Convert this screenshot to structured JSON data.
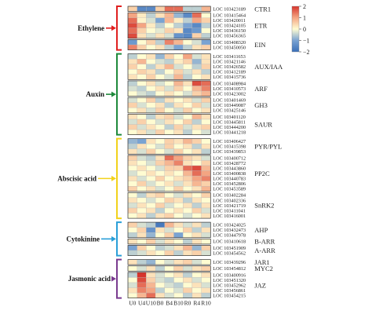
{
  "chart_data": {
    "type": "heatmap",
    "columns": [
      "U0",
      "U4",
      "U10",
      "B0",
      "B4",
      "B10",
      "R0",
      "R4",
      "R10"
    ],
    "colorbar": {
      "max": 2,
      "min": -2,
      "ticks": [
        2,
        1,
        0,
        -1,
        -2
      ],
      "tick_labels": [
        "2",
        "1",
        "0",
        "−1",
        "−2"
      ],
      "colors": [
        "#3a6fb8",
        "#7aa3d2",
        "#fffcd2",
        "#f4a582",
        "#d6342c"
      ]
    },
    "categories": [
      {
        "name": "Ethylene",
        "color": "#e02020",
        "groups": [
          {
            "gene": "CTR1",
            "rows": [
              {
                "id": "LOC 103423189",
                "values": [
                  0.5,
                  -1.5,
                  -1.5,
                  0.5,
                  1.5,
                  1.5,
                  -0.5,
                  -0.5,
                  0.8
                ]
              }
            ]
          },
          {
            "gene": "ETR",
            "rows": [
              {
                "id": "LOC 103415464",
                "values": [
                  1.0,
                  0.2,
                  -0.5,
                  0.3,
                  0.8,
                  -0.8,
                  -1.5,
                  1.5,
                  0.0
                ]
              },
              {
                "id": "LOC 103420011",
                "values": [
                  1.5,
                  0.1,
                  -0.3,
                  -1.0,
                  0.8,
                  0.2,
                  -0.5,
                  1.0,
                  0.5
                ]
              },
              {
                "id": "LOC 103424105",
                "values": [
                  1.8,
                  1.0,
                  0.2,
                  -0.5,
                  0.0,
                  -0.5,
                  -1.0,
                  -1.5,
                  -0.5
                ]
              },
              {
                "id": "LOC 103436150",
                "values": [
                  1.5,
                  0.5,
                  0.0,
                  -0.2,
                  0.5,
                  0.3,
                  -1.5,
                  -1.2,
                  0.0
                ]
              },
              {
                "id": "LOC 103456365",
                "values": [
                  1.8,
                  0.3,
                  -0.3,
                  0.3,
                  -0.3,
                  -1.3,
                  -1.5,
                  0.5,
                  -0.5
                ]
              }
            ]
          },
          {
            "gene": "EIN",
            "rows": [
              {
                "id": "LOC 103408320",
                "values": [
                  -1.2,
                  0.0,
                  0.5,
                  -0.5,
                  1.3,
                  0.8,
                  0.0,
                  -0.3,
                  -1.0
                ]
              },
              {
                "id": "LOC 103450050",
                "values": [
                  1.3,
                  0.5,
                  0.0,
                  0.3,
                  -0.5,
                  -1.0,
                  -0.5,
                  0.3,
                  0.5
                ]
              }
            ]
          }
        ]
      },
      {
        "name": "Auxin",
        "color": "#1f8a3c",
        "groups": [
          {
            "gene": "AUX/IAA",
            "rows": [
              {
                "id": "LOC 103411653",
                "values": [
                  -0.5,
                  0.0,
                  0.3,
                  -0.8,
                  0.5,
                  0.0,
                  1.0,
                  -0.3,
                  0.3
                ]
              },
              {
                "id": "LOC 103421146",
                "values": [
                  0.3,
                  0.8,
                  0.0,
                  -0.3,
                  -0.5,
                  0.2,
                  0.5,
                  -0.8,
                  0.3
                ]
              },
              {
                "id": "LOC 103426582",
                "values": [
                  0.5,
                  0.0,
                  -0.5,
                  0.3,
                  0.8,
                  -0.3,
                  0.0,
                  -0.5,
                  0.5
                ]
              },
              {
                "id": "LOC 103412189",
                "values": [
                  0.0,
                  0.5,
                  0.3,
                  -0.5,
                  0.0,
                  0.5,
                  -0.3,
                  0.3,
                  -0.5
                ]
              },
              {
                "id": "LOC 103415736",
                "values": [
                  0.3,
                  0.0,
                  0.5,
                  0.0,
                  -0.3,
                  0.8,
                  -0.5,
                  0.0,
                  0.3
                ]
              }
            ]
          },
          {
            "gene": "ARF",
            "rows": [
              {
                "id": "LOC 103408984",
                "values": [
                  -0.5,
                  0.0,
                  0.3,
                  -0.3,
                  0.0,
                  0.8,
                  0.3,
                  1.8,
                  1.5
                ]
              },
              {
                "id": "LOC 103410573",
                "values": [
                  -0.3,
                  -0.5,
                  0.0,
                  0.3,
                  -0.3,
                  0.5,
                  0.0,
                  0.8,
                  1.3
                ]
              },
              {
                "id": "LOC 103423002",
                "values": [
                  0.0,
                  -0.3,
                  -0.5,
                  0.0,
                  0.3,
                  0.0,
                  -0.3,
                  0.5,
                  0.8
                ]
              }
            ]
          },
          {
            "gene": "GH3",
            "rows": [
              {
                "id": "LOC 103401469",
                "values": [
                  -0.3,
                  0.0,
                  0.5,
                  -0.5,
                  0.3,
                  0.0,
                  0.3,
                  -0.3,
                  0.5
                ]
              },
              {
                "id": "LOC 103449087",
                "values": [
                  0.5,
                  -0.3,
                  0.0,
                  0.3,
                  -0.5,
                  0.3,
                  0.0,
                  0.5,
                  -0.3
                ]
              },
              {
                "id": "LOC 103425146",
                "values": [
                  0.0,
                  0.3,
                  -0.3,
                  0.5,
                  0.0,
                  -0.3,
                  0.5,
                  0.0,
                  0.3
                ]
              }
            ]
          },
          {
            "gene": "SAUR",
            "rows": [
              {
                "id": "LOC 103401120",
                "values": [
                  0.3,
                  0.0,
                  -0.5,
                  0.3,
                  0.5,
                  -0.3,
                  0.0,
                  0.8,
                  0.3
                ]
              },
              {
                "id": "LOC 103445811",
                "values": [
                  -0.3,
                  0.5,
                  0.0,
                  -0.3,
                  0.3,
                  0.0,
                  0.5,
                  -0.5,
                  0.0
                ]
              },
              {
                "id": "LOC 103444200",
                "values": [
                  0.5,
                  -0.3,
                  0.3,
                  0.0,
                  -0.5,
                  0.5,
                  -0.3,
                  0.3,
                  0.5
                ]
              },
              {
                "id": "LOC 103441218",
                "values": [
                  0.0,
                  0.3,
                  -0.3,
                  0.5,
                  0.0,
                  0.3,
                  -0.5,
                  0.0,
                  -0.3
                ]
              }
            ]
          }
        ]
      },
      {
        "name": "Abscisic acid",
        "color": "#f2d21c",
        "groups": [
          {
            "gene": "PYR/PYL",
            "rows": [
              {
                "id": "LOC 103406427",
                "values": [
                  -0.8,
                  -1.0,
                  0.3,
                  0.0,
                  0.5,
                  0.3,
                  0.8,
                  0.5,
                  0.0
                ]
              },
              {
                "id": "LOC 103415398",
                "values": [
                  -0.5,
                  0.3,
                  0.0,
                  -0.3,
                  0.5,
                  0.0,
                  0.3,
                  -0.5,
                  0.3
                ]
              },
              {
                "id": "LOC 103439853",
                "values": [
                  0.3,
                  -0.3,
                  0.5,
                  0.0,
                  -0.3,
                  0.5,
                  0.0,
                  0.3,
                  -0.5
                ]
              }
            ]
          },
          {
            "gene": "PP2C",
            "rows": [
              {
                "id": "LOC 103400712",
                "values": [
                  0.5,
                  -0.3,
                  -0.5,
                  0.3,
                  1.5,
                  1.0,
                  0.5,
                  0.3,
                  -0.3
                ]
              },
              {
                "id": "LOC 103428772",
                "values": [
                  0.3,
                  0.0,
                  -0.3,
                  0.5,
                  0.8,
                  1.3,
                  0.3,
                  0.0,
                  0.5
                ]
              },
              {
                "id": "LOC 103443860",
                "values": [
                  0.0,
                  0.3,
                  0.0,
                  -0.3,
                  0.5,
                  0.5,
                  1.5,
                  1.8,
                  0.8
                ]
              },
              {
                "id": "LOC 103400838",
                "values": [
                  -0.3,
                  0.0,
                  0.3,
                  0.0,
                  0.3,
                  0.0,
                  0.8,
                  1.5,
                  1.0
                ]
              },
              {
                "id": "LOC 103440783",
                "values": [
                  0.3,
                  -0.3,
                  0.0,
                  0.5,
                  0.0,
                  0.3,
                  0.5,
                  1.0,
                  1.3
                ]
              },
              {
                "id": "LOC 103452806",
                "values": [
                  0.0,
                  0.5,
                  -0.3,
                  0.0,
                  0.3,
                  -0.3,
                  0.3,
                  0.8,
                  0.5
                ]
              },
              {
                "id": "LOC 103453589",
                "values": [
                  0.5,
                  0.0,
                  0.3,
                  -0.3,
                  0.0,
                  0.5,
                  0.0,
                  0.3,
                  0.8
                ]
              }
            ]
          },
          {
            "gene": "SnRK2",
            "rows": [
              {
                "id": "LOC 103402284",
                "values": [
                  0.0,
                  -0.5,
                  0.3,
                  0.5,
                  0.0,
                  -0.3,
                  0.3,
                  0.0,
                  0.5
                ]
              },
              {
                "id": "LOC 103402336",
                "values": [
                  0.3,
                  0.0,
                  -0.3,
                  0.0,
                  0.5,
                  0.3,
                  -0.5,
                  0.3,
                  0.0
                ]
              },
              {
                "id": "LOC 103421719",
                "values": [
                  -0.3,
                  0.3,
                  0.0,
                  0.5,
                  -0.3,
                  0.0,
                  0.3,
                  -0.5,
                  0.3
                ]
              },
              {
                "id": "LOC 103411041",
                "values": [
                  0.5,
                  0.0,
                  0.3,
                  -0.5,
                  0.0,
                  0.3,
                  0.0,
                  0.5,
                  -0.3
                ]
              },
              {
                "id": "LOC 103416001",
                "values": [
                  0.0,
                  0.3,
                  -0.5,
                  0.3,
                  0.5,
                  0.0,
                  -0.3,
                  0.0,
                  0.3
                ]
              }
            ]
          }
        ]
      },
      {
        "name": "Cytokinine",
        "color": "#2a9fd8",
        "groups": [
          {
            "gene": "AHP",
            "rows": [
              {
                "id": "LOC 103424025",
                "values": [
                  0.5,
                  -0.3,
                  -0.5,
                  -1.8,
                  0.8,
                  0.3,
                  -0.3,
                  0.3,
                  -0.5
                ]
              },
              {
                "id": "LOC 103432473",
                "values": [
                  0.0,
                  0.5,
                  -1.3,
                  0.3,
                  -0.3,
                  0.0,
                  0.5,
                  -0.5,
                  0.3
                ]
              },
              {
                "id": "LOC 103447978",
                "values": [
                  -0.5,
                  0.3,
                  -0.8,
                  0.0,
                  0.5,
                  -1.0,
                  0.0,
                  0.3,
                  -0.3
                ]
              }
            ]
          },
          {
            "gene": "B-ARR",
            "rows": [
              {
                "id": "LOC 103410618",
                "values": [
                  0.3,
                  0.0,
                  0.5,
                  -0.3,
                  0.3,
                  0.0,
                  -0.5,
                  0.3,
                  0.0
                ]
              }
            ]
          },
          {
            "gene": "A-ARR",
            "rows": [
              {
                "id": "LOC 103451909",
                "values": [
                  -1.0,
                  0.5,
                  0.0,
                  -0.5,
                  -0.3,
                  0.3,
                  0.8,
                  -0.8,
                  0.5
                ]
              },
              {
                "id": "LOC 103454562",
                "values": [
                  -0.5,
                  -0.3,
                  0.3,
                  0.0,
                  0.5,
                  -0.5,
                  0.3,
                  0.5,
                  -0.3
                ]
              }
            ]
          }
        ]
      },
      {
        "name": "Jasmonic acid",
        "color": "#7a3b8f",
        "groups": [
          {
            "gene": "JAR1",
            "rows": [
              {
                "id": "LOC 103439296",
                "values": [
                  0.3,
                  -0.5,
                  -0.8,
                  0.0,
                  -0.3,
                  0.3,
                  0.5,
                  -0.3,
                  0.0
                ]
              }
            ]
          },
          {
            "gene": "MYC2",
            "rows": [
              {
                "id": "LOC 103454812",
                "values": [
                  0.0,
                  -0.3,
                  0.3,
                  -0.5,
                  0.0,
                  0.5,
                  -0.3,
                  0.3,
                  0.5
                ]
              }
            ]
          },
          {
            "gene": "JAZ",
            "rows": [
              {
                "id": "LOC 103400916",
                "values": [
                  -0.5,
                  2.0,
                  0.3,
                  -0.3,
                  0.0,
                  0.3,
                  -0.5,
                  0.0,
                  0.3
                ]
              },
              {
                "id": "LOC 103451320",
                "values": [
                  0.0,
                  1.8,
                  0.5,
                  -0.3,
                  -0.5,
                  0.0,
                  0.3,
                  -0.3,
                  0.0
                ]
              },
              {
                "id": "LOC 103452962",
                "values": [
                  -0.3,
                  1.5,
                  0.8,
                  0.0,
                  -0.3,
                  -0.5,
                  0.0,
                  0.3,
                  -0.3
                ]
              },
              {
                "id": "LOC 103456861",
                "values": [
                  0.3,
                  1.3,
                  1.0,
                  -0.5,
                  0.0,
                  -0.3,
                  0.5,
                  0.0,
                  0.3
                ]
              },
              {
                "id": "LOC 103454215",
                "values": [
                  0.0,
                  0.8,
                  1.5,
                  0.3,
                  -0.3,
                  0.0,
                  -0.5,
                  0.3,
                  -0.5
                ]
              }
            ]
          }
        ]
      }
    ]
  }
}
